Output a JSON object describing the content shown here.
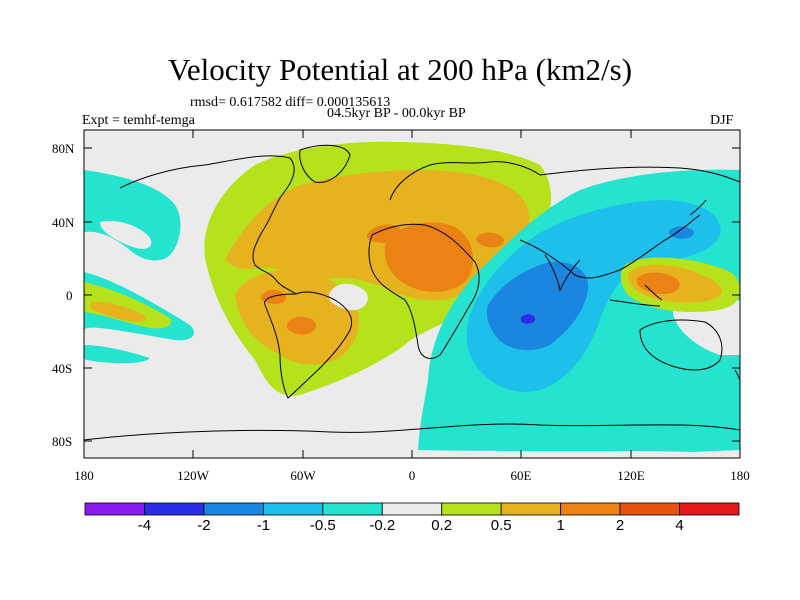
{
  "title": "Velocity Potential at 200 hPa (km2/s)",
  "stats": "rmsd= 0.617582  diff= 0.000135613",
  "period": "04.5kyr BP - 00.0kyr BP",
  "experiment": "Expt = temhf-temga",
  "season": "DJF",
  "axes": {
    "y_ticks": [
      "80N",
      "40N",
      "0",
      "40S",
      "80S"
    ],
    "x_ticks": [
      "180",
      "120W",
      "60W",
      "0",
      "60E",
      "120E",
      "180"
    ]
  },
  "colorbar": {
    "labels": [
      "-4",
      "-2",
      "-1",
      "-0.5",
      "-0.2",
      "0.2",
      "0.5",
      "1",
      "2",
      "4"
    ],
    "colors": [
      "#8a1bf0",
      "#2b2ce6",
      "#1a86e0",
      "#1cc0ea",
      "#24e4cf",
      "#ebebeb",
      "#b6e21c",
      "#e6b31e",
      "#eb8314",
      "#e8520e",
      "#e5181a"
    ]
  }
}
